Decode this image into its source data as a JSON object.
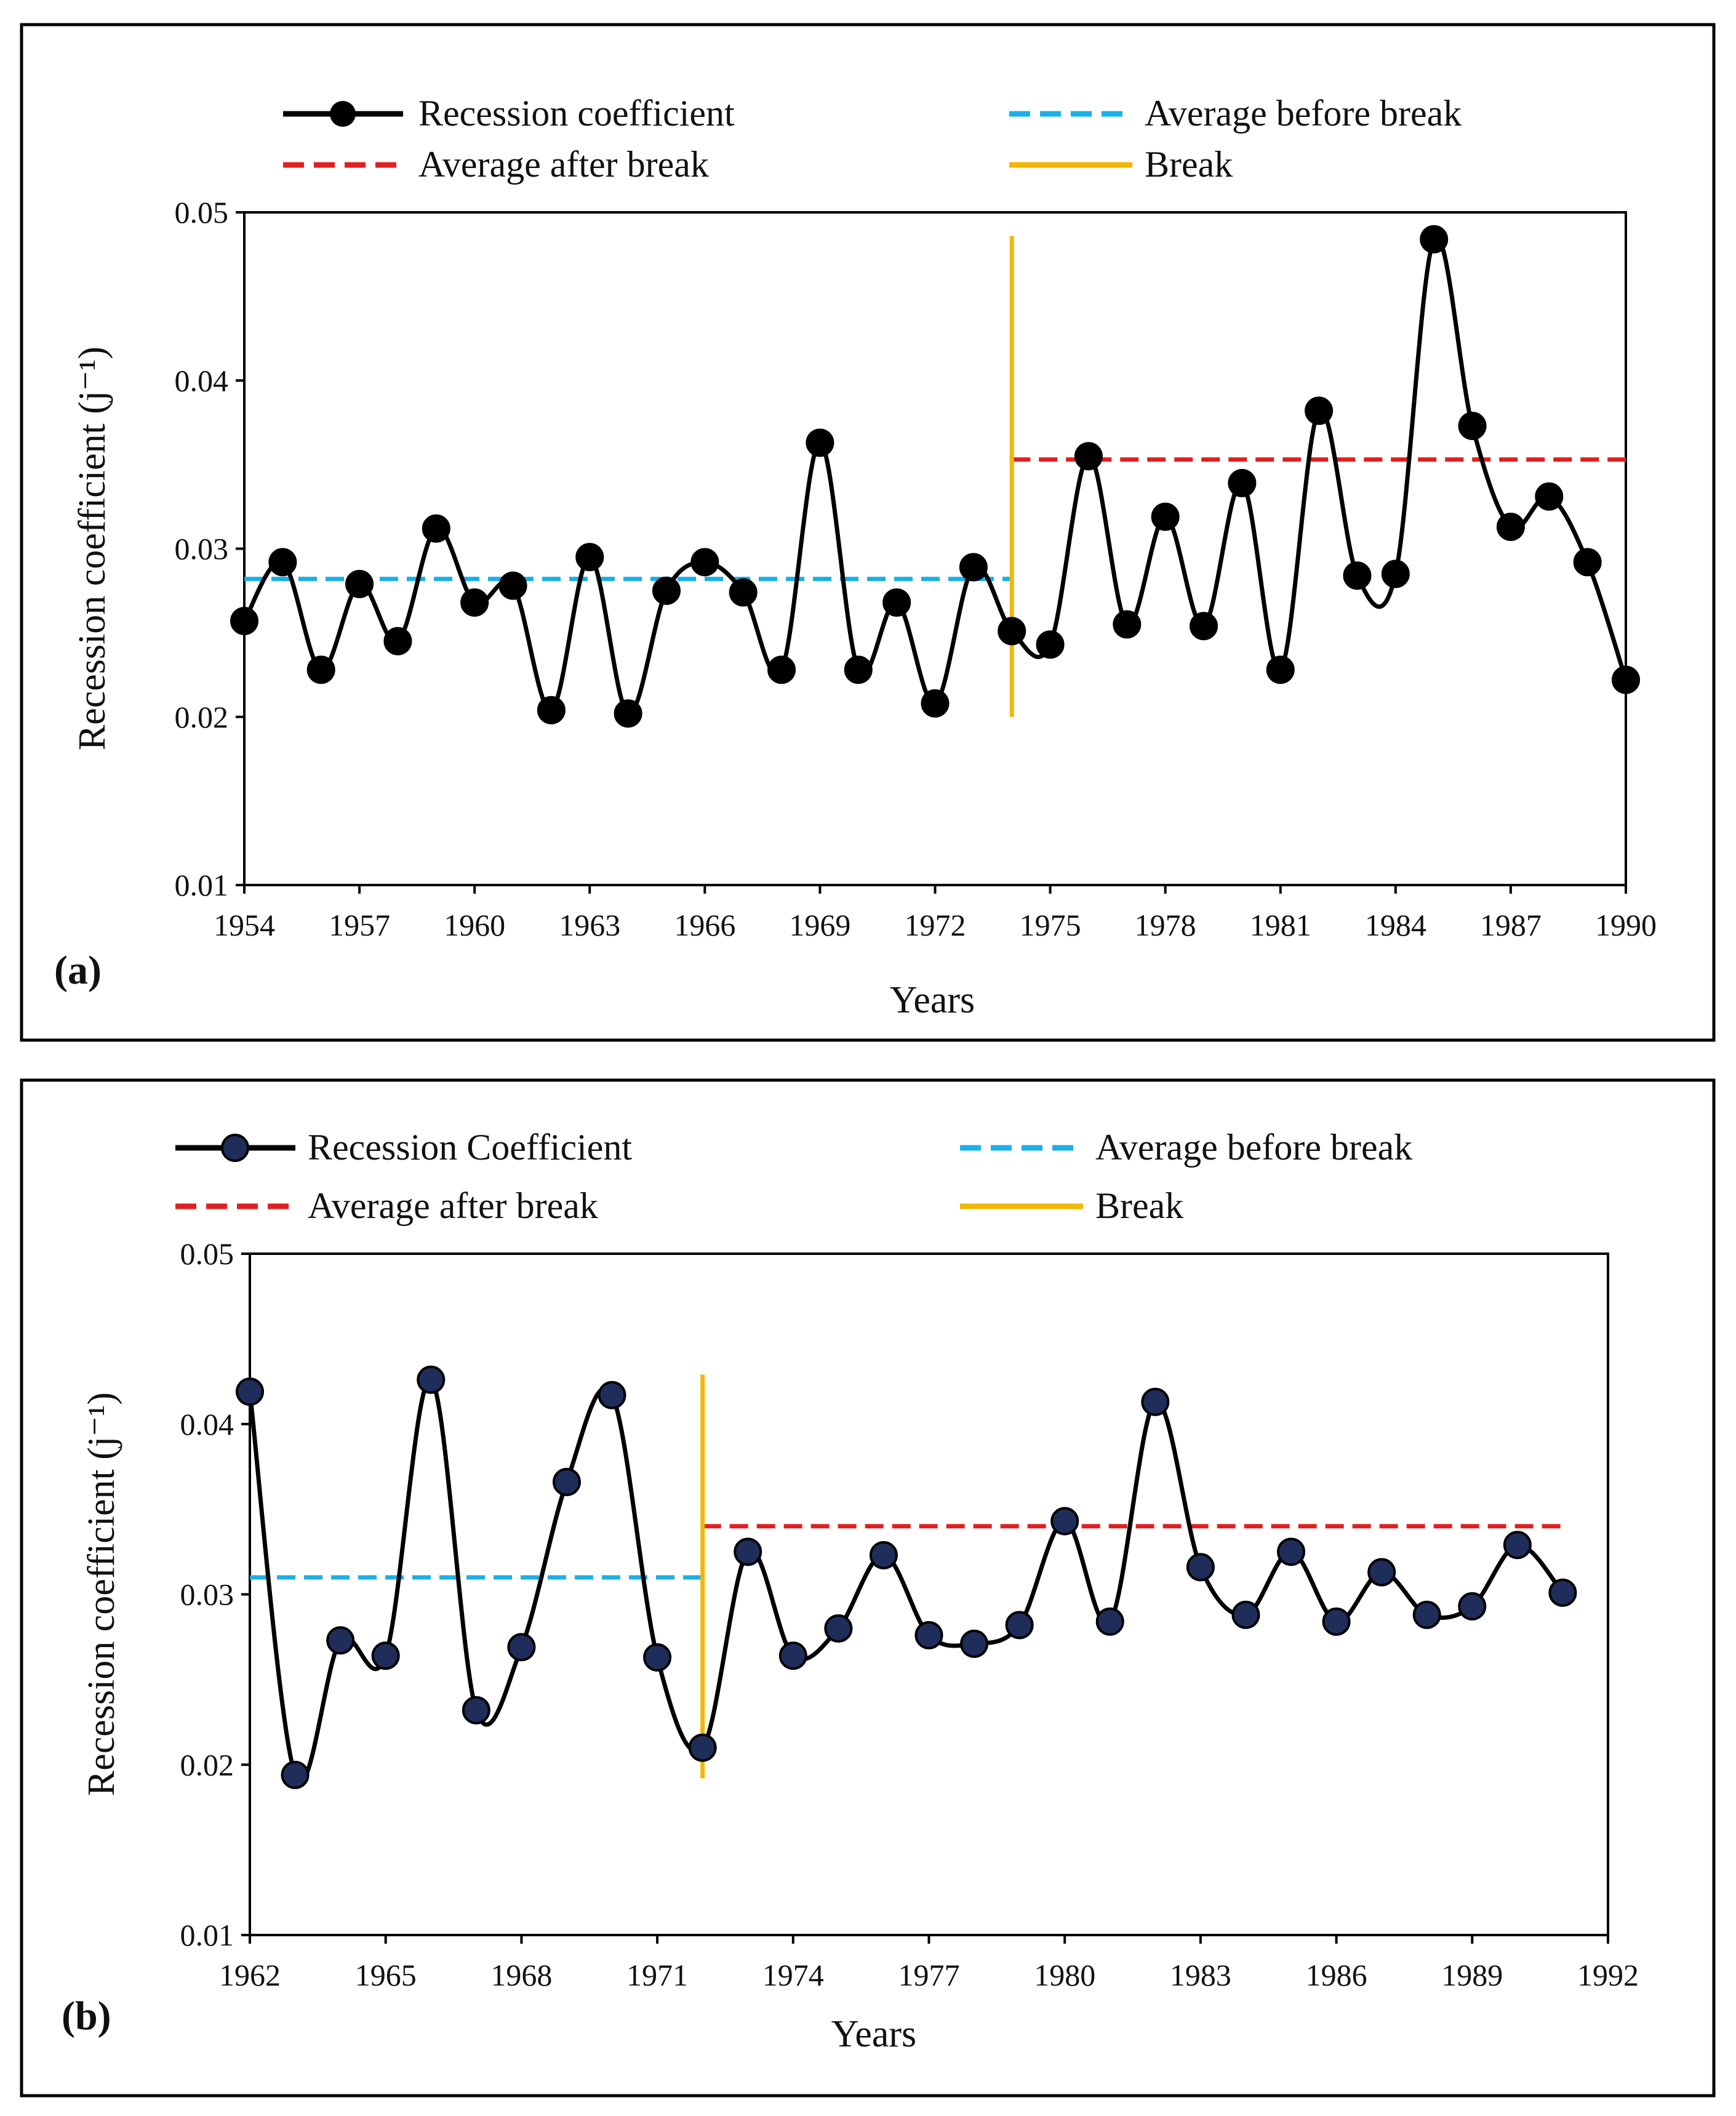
{
  "chart_data": [
    {
      "type": "line",
      "panel_label": "(a)",
      "xlabel": "Years",
      "ylabel": "Recession coefficient (j⁻¹)",
      "xlim": [
        1954,
        1990
      ],
      "ylim": [
        0.01,
        0.05
      ],
      "x_ticks": [
        1954,
        1957,
        1960,
        1963,
        1966,
        1969,
        1972,
        1975,
        1978,
        1981,
        1984,
        1987,
        1990
      ],
      "y_ticks": [
        "0.01",
        "0.02",
        "0.03",
        "0.04",
        "0.05"
      ],
      "legend": {
        "series": "Recession coefficient",
        "avg_before": "Average before break",
        "avg_after": "Average after break",
        "break": "Break"
      },
      "series": [
        {
          "name": "Recession coefficient",
          "color": "#000000",
          "marker_color": "#000000",
          "x": [
            1954,
            1955,
            1956,
            1957,
            1958,
            1959,
            1960,
            1961,
            1962,
            1963,
            1964,
            1965,
            1966,
            1967,
            1968,
            1969,
            1970,
            1971,
            1972,
            1973,
            1974,
            1975,
            1976,
            1977,
            1978,
            1979,
            1980,
            1981,
            1982,
            1983,
            1984,
            1985,
            1986,
            1987,
            1988,
            1989,
            1990
          ],
          "values": [
            0.0257,
            0.0292,
            0.0228,
            0.0279,
            0.0245,
            0.0312,
            0.0268,
            0.0278,
            0.0204,
            0.0295,
            0.0202,
            0.0275,
            0.0292,
            0.0274,
            0.0228,
            0.0363,
            0.0228,
            0.0268,
            0.0208,
            0.0289,
            0.0251,
            0.0243,
            0.0355,
            0.0255,
            0.0319,
            0.0254,
            0.0339,
            0.0228,
            0.0382,
            0.0284,
            0.0285,
            0.0484,
            0.0373,
            0.0313,
            0.0331,
            0.0292,
            0.0222
          ]
        }
      ],
      "average_before_break": {
        "value": 0.0282,
        "x_range": [
          1954,
          1974
        ],
        "color": "#1ab0e8"
      },
      "average_after_break": {
        "value": 0.0353,
        "x_range": [
          1974,
          1990
        ],
        "color": "#e02020"
      },
      "break": {
        "x": 1974,
        "y_range": [
          0.02,
          0.0486
        ],
        "color": "#f2b705"
      }
    },
    {
      "type": "line",
      "panel_label": "(b)",
      "xlabel": "Years",
      "ylabel": "Recession coefficient (j⁻¹)",
      "xlim": [
        1962,
        1992
      ],
      "ylim": [
        0.01,
        0.05
      ],
      "x_ticks": [
        1962,
        1965,
        1968,
        1971,
        1974,
        1977,
        1980,
        1983,
        1986,
        1989,
        1992
      ],
      "y_ticks": [
        "0.01",
        "0.02",
        "0.03",
        "0.04",
        "0.05"
      ],
      "legend": {
        "series": "Recession Coefficient",
        "avg_before": "Average before break",
        "avg_after": "Average after break",
        "break": "Break"
      },
      "series": [
        {
          "name": "Recession Coefficient",
          "color": "#000000",
          "marker_color": "#1f2d5a",
          "x": [
            1962,
            1963,
            1964,
            1965,
            1966,
            1967,
            1968,
            1969,
            1970,
            1971,
            1972,
            1973,
            1974,
            1975,
            1976,
            1977,
            1978,
            1979,
            1980,
            1981,
            1982,
            1983,
            1984,
            1985,
            1986,
            1987,
            1988,
            1989,
            1990,
            1991
          ],
          "values": [
            0.0419,
            0.0194,
            0.0273,
            0.0264,
            0.0426,
            0.0232,
            0.0269,
            0.0366,
            0.0417,
            0.0263,
            0.021,
            0.0325,
            0.0264,
            0.028,
            0.0323,
            0.0276,
            0.0271,
            0.0282,
            0.0343,
            0.0284,
            0.0413,
            0.0316,
            0.0288,
            0.0325,
            0.0284,
            0.0313,
            0.0288,
            0.0293,
            0.0329,
            0.0301
          ]
        }
      ],
      "average_before_break": {
        "value": 0.031,
        "x_range": [
          1962,
          1972
        ],
        "color": "#1ab0e8"
      },
      "average_after_break": {
        "value": 0.034,
        "x_range": [
          1972,
          1991
        ],
        "color": "#e02020"
      },
      "break": {
        "x": 1972,
        "y_range": [
          0.0192,
          0.0429
        ],
        "color": "#f2b705"
      }
    }
  ]
}
